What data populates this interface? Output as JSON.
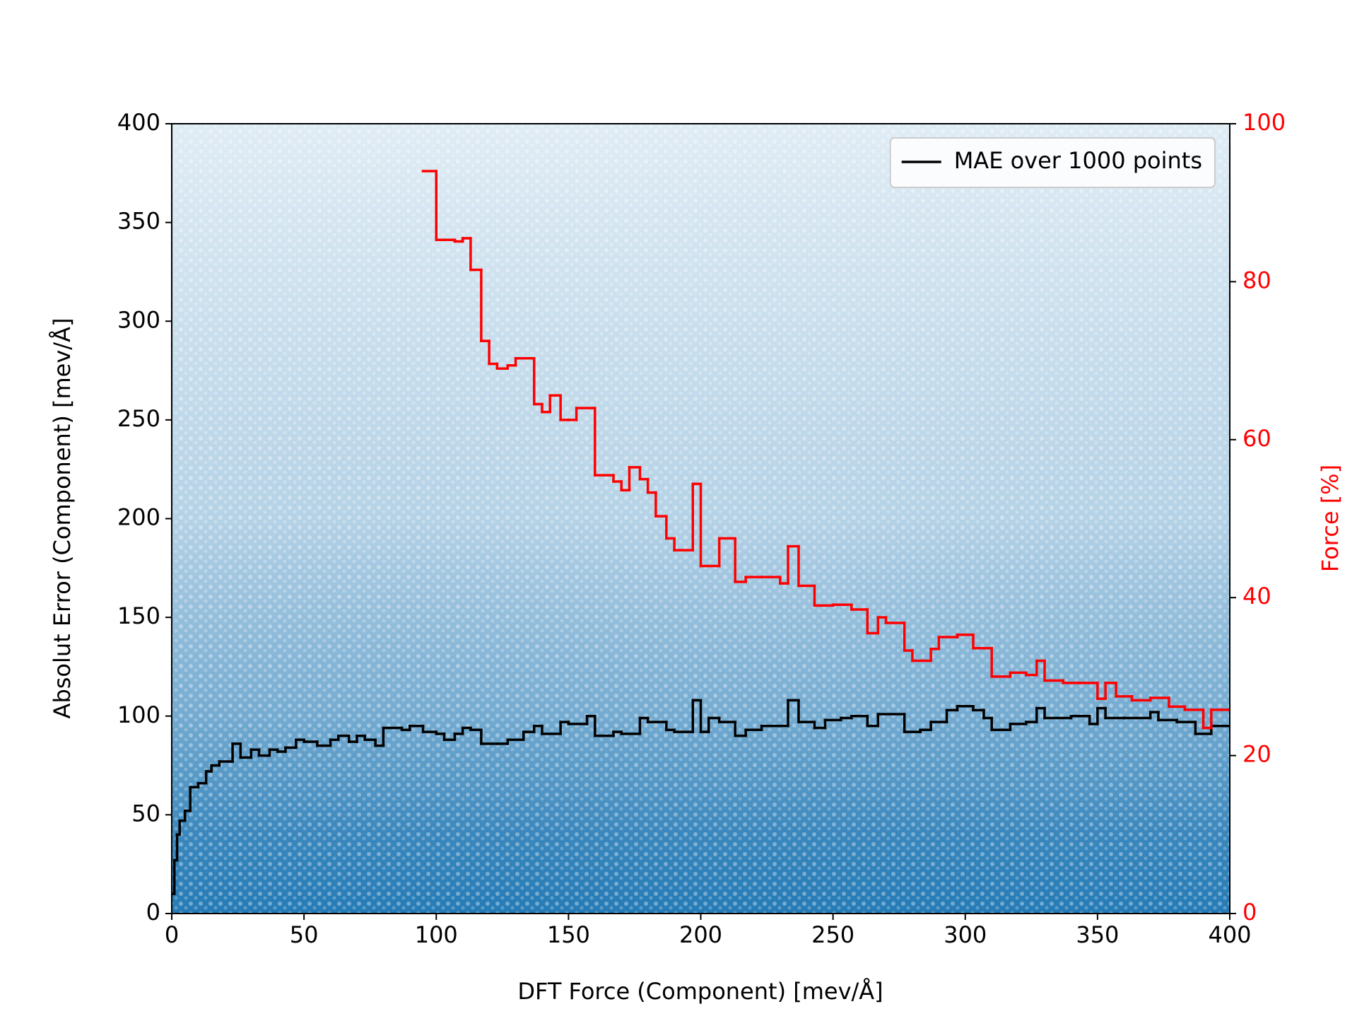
{
  "chart_data": {
    "type": "step",
    "xlabel": "DFT Force (Component) [mev/Å]",
    "ylabel": "Absolut Error (Component) [mev/Å]",
    "y2label": "Force [%]",
    "xlim": [
      0,
      400
    ],
    "xticks": [
      0,
      50,
      100,
      150,
      200,
      250,
      300,
      350,
      400
    ],
    "ylim": [
      0,
      400
    ],
    "yticks": [
      0,
      50,
      100,
      150,
      200,
      250,
      300,
      350,
      400
    ],
    "y2lim": [
      0,
      100
    ],
    "y2ticks": [
      0,
      20,
      40,
      60,
      80,
      100
    ],
    "legend": "upper right",
    "series": [
      {
        "name": "MAE over 1000 points",
        "color": "#000000",
        "bins": [
          0,
          1,
          2,
          3,
          5,
          7,
          10,
          13,
          15,
          18,
          23,
          26,
          30,
          33,
          37,
          40,
          43,
          47,
          50,
          55,
          60,
          63,
          67,
          70,
          73,
          77,
          80,
          87,
          90,
          95,
          100,
          103,
          107,
          110,
          113,
          117,
          123,
          127,
          133,
          137,
          140,
          147,
          150,
          157,
          160,
          167,
          170,
          177,
          180,
          187,
          190,
          197,
          200,
          203,
          207,
          213,
          217,
          223,
          230,
          233,
          237,
          243,
          247,
          253,
          257,
          263,
          267,
          277,
          283,
          287,
          293,
          297,
          303,
          307,
          310,
          317,
          323,
          327,
          330,
          340,
          347,
          350,
          353,
          360,
          370,
          373,
          380,
          387,
          393,
          400
        ],
        "values": [
          10,
          27,
          40,
          47,
          52,
          64,
          66,
          72,
          75,
          77,
          86,
          79,
          83,
          80,
          83,
          82,
          84,
          88,
          87,
          85,
          88,
          90,
          87,
          90,
          88,
          85,
          94,
          93,
          95,
          92,
          91,
          88,
          91,
          94,
          93,
          86,
          86,
          88,
          92,
          95,
          91,
          97,
          96,
          100,
          90,
          92,
          91,
          99,
          97,
          93,
          92,
          108,
          92,
          99,
          97,
          90,
          93,
          95,
          95,
          108,
          97,
          94,
          98,
          99,
          100,
          95,
          101,
          92,
          93,
          97,
          103,
          105,
          103,
          99,
          93,
          96,
          97,
          104,
          99,
          100,
          96,
          104,
          99,
          99,
          102,
          98,
          97,
          91,
          95
        ]
      },
      {
        "color": "#ff0000",
        "axis": "y2",
        "bins": [
          95,
          100,
          107,
          110,
          113,
          117,
          120,
          123,
          127,
          130,
          137,
          140,
          143,
          147,
          150,
          153,
          160,
          167,
          170,
          173,
          177,
          180,
          183,
          187,
          190,
          197,
          200,
          207,
          213,
          217,
          223,
          230,
          233,
          237,
          243,
          250,
          257,
          263,
          267,
          270,
          277,
          280,
          287,
          290,
          297,
          303,
          310,
          317,
          323,
          327,
          330,
          337,
          343,
          350,
          353,
          357,
          363,
          370,
          377,
          383,
          390,
          393,
          397,
          400
        ],
        "values": [
          94,
          85.3,
          85.1,
          85.5,
          81.5,
          72.5,
          69.6,
          69,
          69.4,
          70.3,
          64.5,
          63.5,
          65.6,
          62.5,
          62.5,
          64,
          55.5,
          54.7,
          53.6,
          56.5,
          55,
          53.3,
          50.3,
          47.5,
          46,
          54.4,
          44,
          47.5,
          42,
          42.6,
          42.6,
          41.8,
          46.5,
          41.5,
          39,
          39.1,
          38.5,
          35.5,
          37.5,
          36.8,
          33.3,
          32,
          33.5,
          35,
          35.3,
          33.6,
          30,
          30.5,
          30.2,
          32,
          29.5,
          29.2,
          29.2,
          27.2,
          29.2,
          27.5,
          27,
          27.3,
          26.2,
          25.8,
          23.5,
          25.8,
          25.8
        ]
      }
    ]
  }
}
